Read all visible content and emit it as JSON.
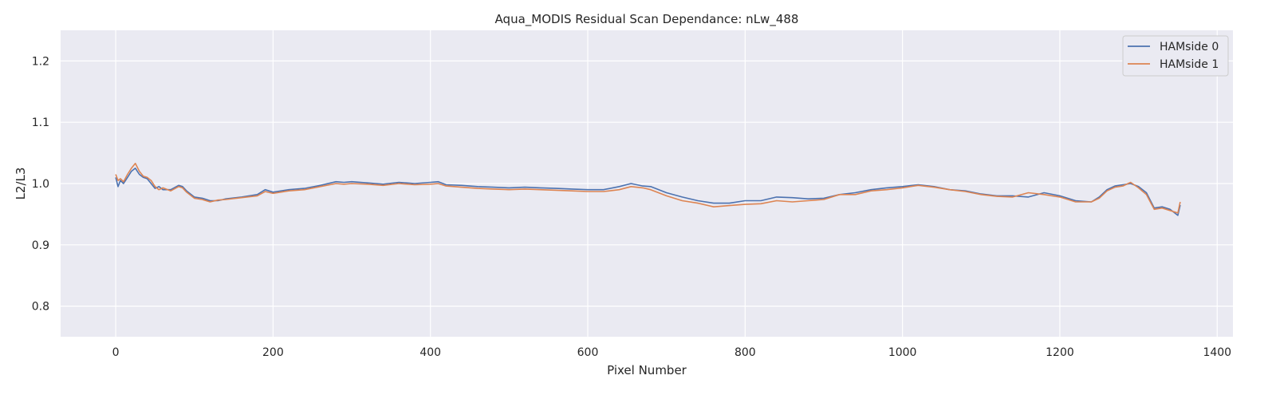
{
  "chart_data": {
    "type": "line",
    "title": "Aqua_MODIS Residual Scan Dependance: nLw_488",
    "xlabel": "Pixel Number",
    "ylabel": "L2/L3",
    "xlim": [
      -70,
      1420
    ],
    "ylim": [
      0.75,
      1.25
    ],
    "xticks": [
      0,
      200,
      400,
      600,
      800,
      1000,
      1200,
      1400
    ],
    "yticks": [
      0.8,
      0.9,
      1.0,
      1.1,
      1.2
    ],
    "grid": true,
    "legend_position": "top-right",
    "series": [
      {
        "name": "HAMside 0",
        "color": "#4c72b0",
        "x": [
          0,
          3,
          6,
          10,
          15,
          20,
          25,
          30,
          35,
          40,
          45,
          50,
          55,
          60,
          70,
          80,
          85,
          90,
          100,
          110,
          120,
          130,
          140,
          160,
          180,
          190,
          200,
          220,
          240,
          260,
          280,
          290,
          300,
          320,
          340,
          360,
          380,
          400,
          410,
          420,
          440,
          460,
          480,
          500,
          520,
          540,
          560,
          580,
          600,
          620,
          640,
          655,
          670,
          680,
          700,
          720,
          740,
          760,
          780,
          800,
          820,
          840,
          860,
          880,
          900,
          920,
          940,
          960,
          980,
          1000,
          1020,
          1040,
          1060,
          1080,
          1100,
          1120,
          1140,
          1160,
          1180,
          1200,
          1220,
          1240,
          1250,
          1260,
          1270,
          1280,
          1290,
          1300,
          1310,
          1320,
          1330,
          1340,
          1350,
          1353
        ],
        "y": [
          1.01,
          0.995,
          1.005,
          1.0,
          1.01,
          1.02,
          1.025,
          1.015,
          1.01,
          1.008,
          1.0,
          0.992,
          0.995,
          0.99,
          0.99,
          0.997,
          0.995,
          0.988,
          0.978,
          0.976,
          0.972,
          0.972,
          0.975,
          0.978,
          0.982,
          0.99,
          0.986,
          0.99,
          0.992,
          0.997,
          1.003,
          1.002,
          1.003,
          1.001,
          0.999,
          1.002,
          1.0,
          1.002,
          1.003,
          0.998,
          0.997,
          0.995,
          0.994,
          0.993,
          0.994,
          0.993,
          0.992,
          0.991,
          0.99,
          0.99,
          0.995,
          1.0,
          0.996,
          0.995,
          0.985,
          0.978,
          0.972,
          0.968,
          0.968,
          0.972,
          0.972,
          0.978,
          0.977,
          0.975,
          0.976,
          0.982,
          0.985,
          0.99,
          0.993,
          0.995,
          0.998,
          0.995,
          0.99,
          0.988,
          0.983,
          0.98,
          0.98,
          0.978,
          0.985,
          0.98,
          0.972,
          0.97,
          0.978,
          0.99,
          0.996,
          0.998,
          1.0,
          0.995,
          0.985,
          0.96,
          0.962,
          0.958,
          0.948,
          0.965
        ]
      },
      {
        "name": "HAMside 1",
        "color": "#dd8452",
        "x": [
          0,
          3,
          6,
          10,
          15,
          20,
          25,
          30,
          35,
          40,
          45,
          50,
          55,
          60,
          70,
          80,
          85,
          90,
          100,
          110,
          120,
          130,
          140,
          160,
          180,
          190,
          200,
          220,
          240,
          260,
          280,
          290,
          300,
          320,
          340,
          360,
          380,
          400,
          410,
          420,
          440,
          460,
          480,
          500,
          520,
          540,
          560,
          580,
          600,
          620,
          640,
          655,
          670,
          680,
          700,
          720,
          740,
          760,
          780,
          800,
          820,
          840,
          860,
          880,
          900,
          920,
          940,
          960,
          980,
          1000,
          1020,
          1040,
          1060,
          1080,
          1100,
          1120,
          1140,
          1160,
          1180,
          1200,
          1220,
          1240,
          1250,
          1260,
          1270,
          1280,
          1290,
          1300,
          1310,
          1320,
          1330,
          1340,
          1350,
          1353
        ],
        "y": [
          1.015,
          1.005,
          1.008,
          1.003,
          1.015,
          1.025,
          1.033,
          1.02,
          1.012,
          1.01,
          1.005,
          0.995,
          0.99,
          0.993,
          0.988,
          0.995,
          0.993,
          0.986,
          0.976,
          0.974,
          0.97,
          0.973,
          0.974,
          0.977,
          0.98,
          0.987,
          0.984,
          0.988,
          0.99,
          0.995,
          1.0,
          0.999,
          1.0,
          0.999,
          0.997,
          1.0,
          0.998,
          0.999,
          1.0,
          0.996,
          0.994,
          0.992,
          0.991,
          0.99,
          0.991,
          0.99,
          0.989,
          0.988,
          0.987,
          0.987,
          0.99,
          0.995,
          0.993,
          0.99,
          0.98,
          0.972,
          0.968,
          0.962,
          0.964,
          0.966,
          0.967,
          0.972,
          0.97,
          0.972,
          0.974,
          0.982,
          0.982,
          0.988,
          0.99,
          0.993,
          0.997,
          0.994,
          0.99,
          0.987,
          0.982,
          0.979,
          0.978,
          0.985,
          0.982,
          0.978,
          0.97,
          0.97,
          0.976,
          0.988,
          0.994,
          0.996,
          1.002,
          0.993,
          0.982,
          0.958,
          0.96,
          0.956,
          0.952,
          0.97
        ]
      }
    ]
  }
}
